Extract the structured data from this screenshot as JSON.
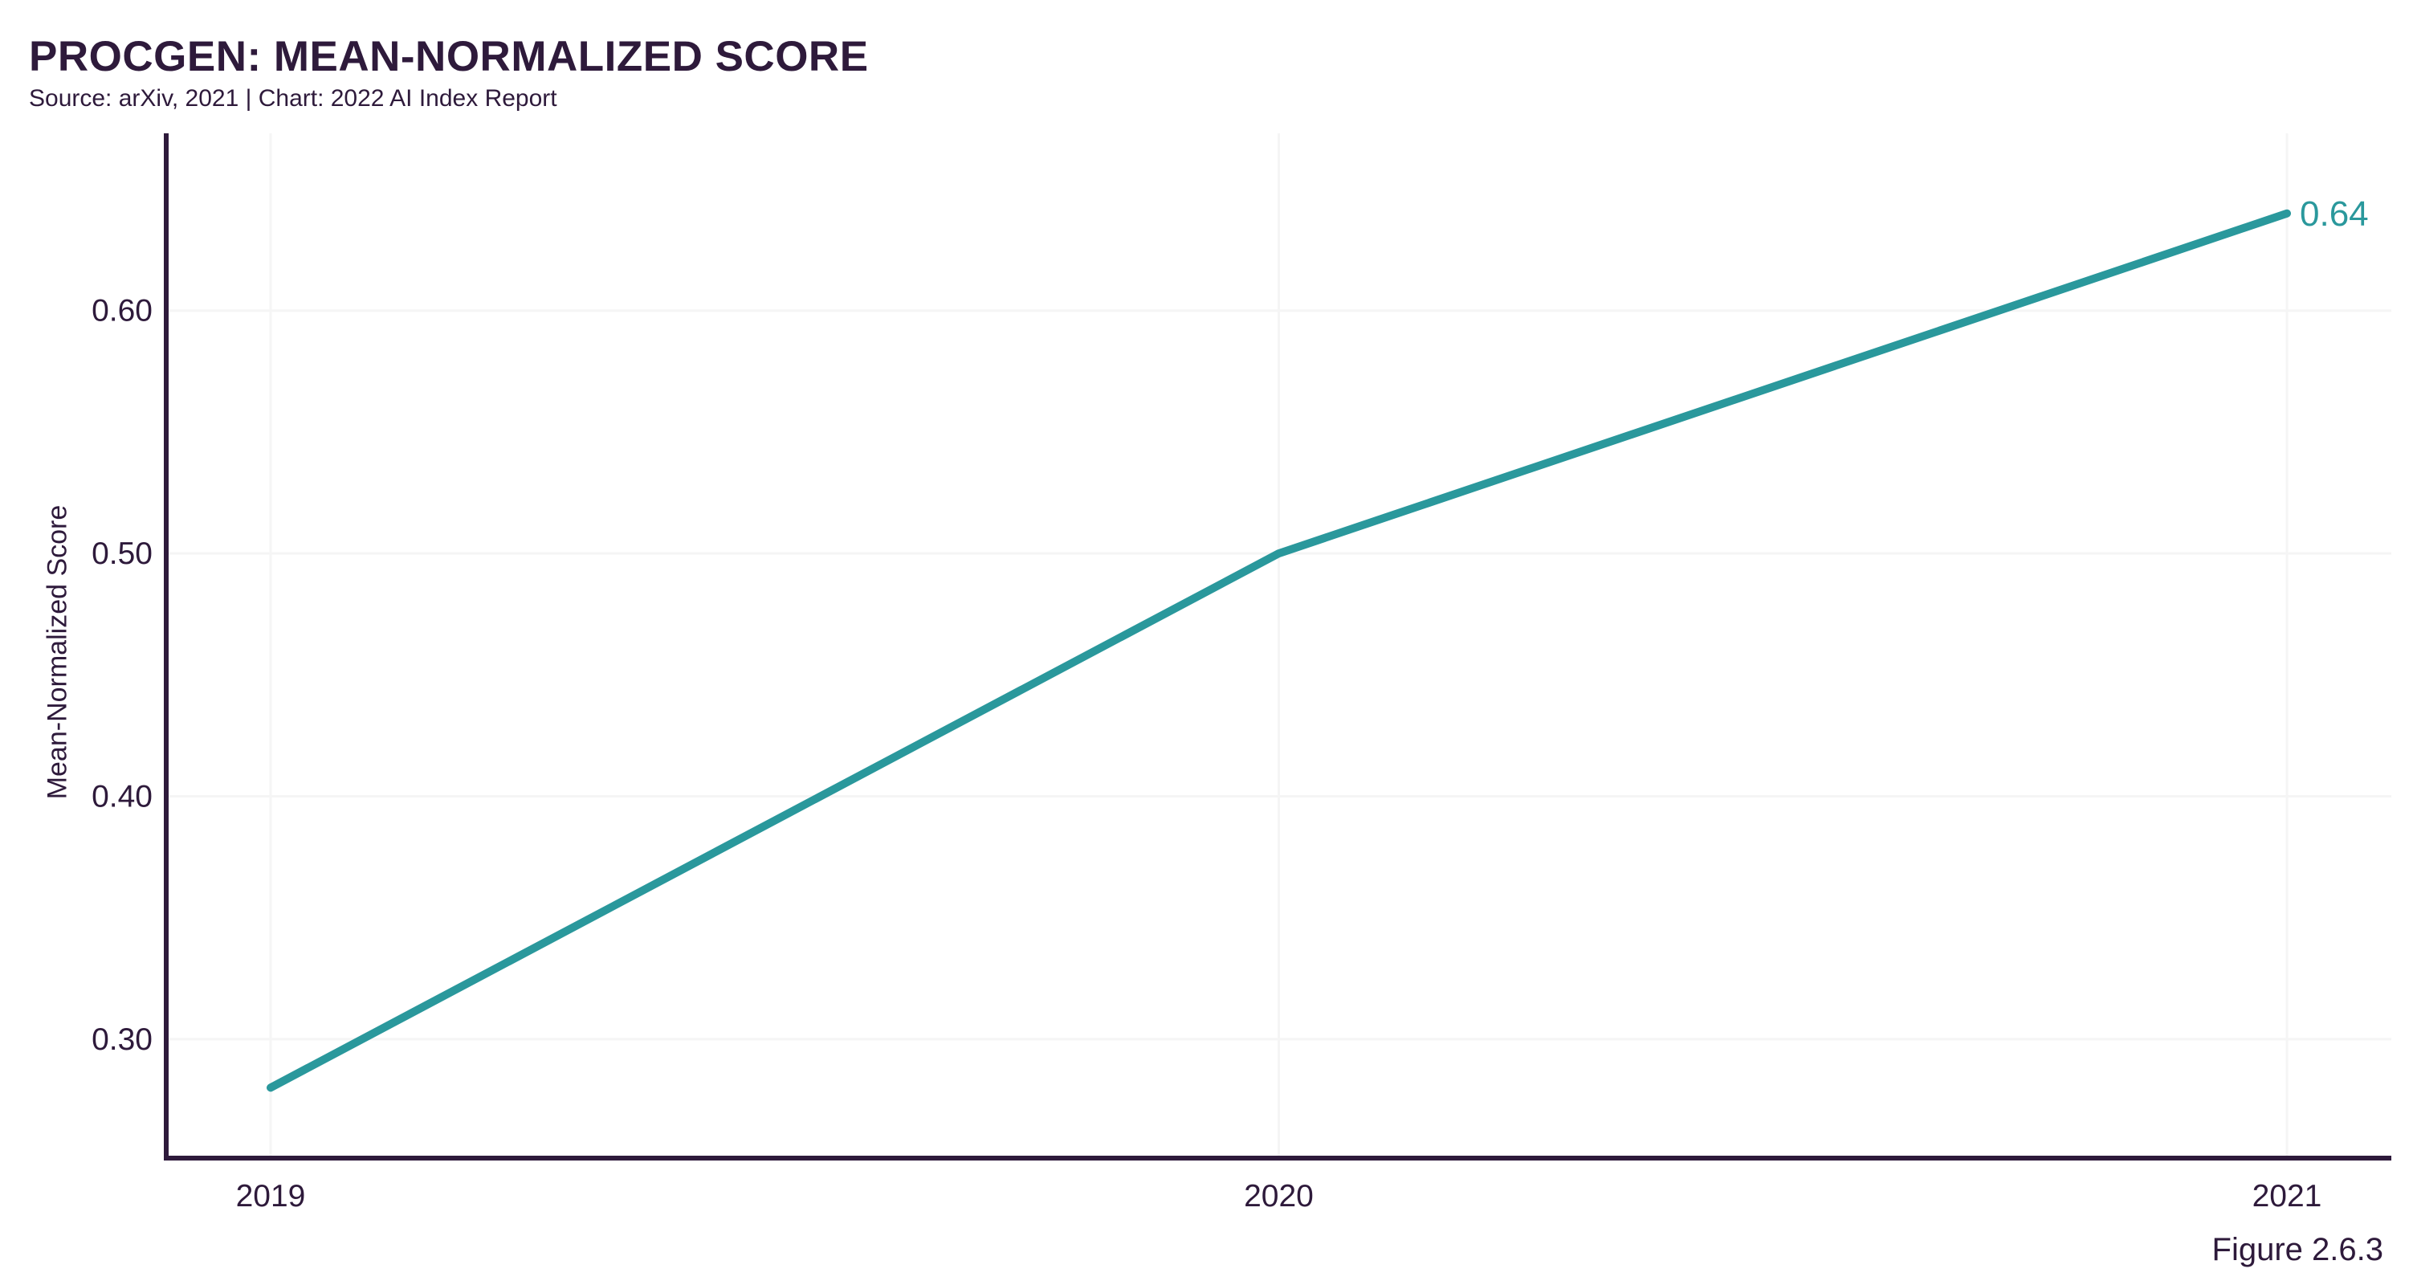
{
  "page": {
    "title": "PROCGEN: MEAN-NORMALIZED SCORE",
    "subtitle": "Source: arXiv, 2021 | Chart: 2022 AI Index Report",
    "figure_label": "Figure 2.6.3"
  },
  "colors": {
    "line": "#2A989C",
    "ink": "#2E1A3B",
    "grid": "#F5F5F5",
    "background": "#FFFFFF"
  },
  "chart_data": {
    "type": "line",
    "title": "PROCGEN: MEAN-NORMALIZED SCORE",
    "categories": [
      "2019",
      "2020",
      "2021"
    ],
    "series": [
      {
        "name": "Procgen mean-normalized score",
        "values": [
          0.28,
          0.5,
          0.64
        ]
      }
    ],
    "xlabel": "",
    "ylabel": "Mean-Normalized Score",
    "ylim": [
      0.251,
      0.673
    ],
    "yticks": [
      0.3,
      0.4,
      0.5,
      0.6
    ],
    "ytick_labels": [
      "0.30",
      "0.40",
      "0.50",
      "0.60"
    ],
    "end_point_label": "0.64",
    "grid": true,
    "legend_position": "none"
  }
}
